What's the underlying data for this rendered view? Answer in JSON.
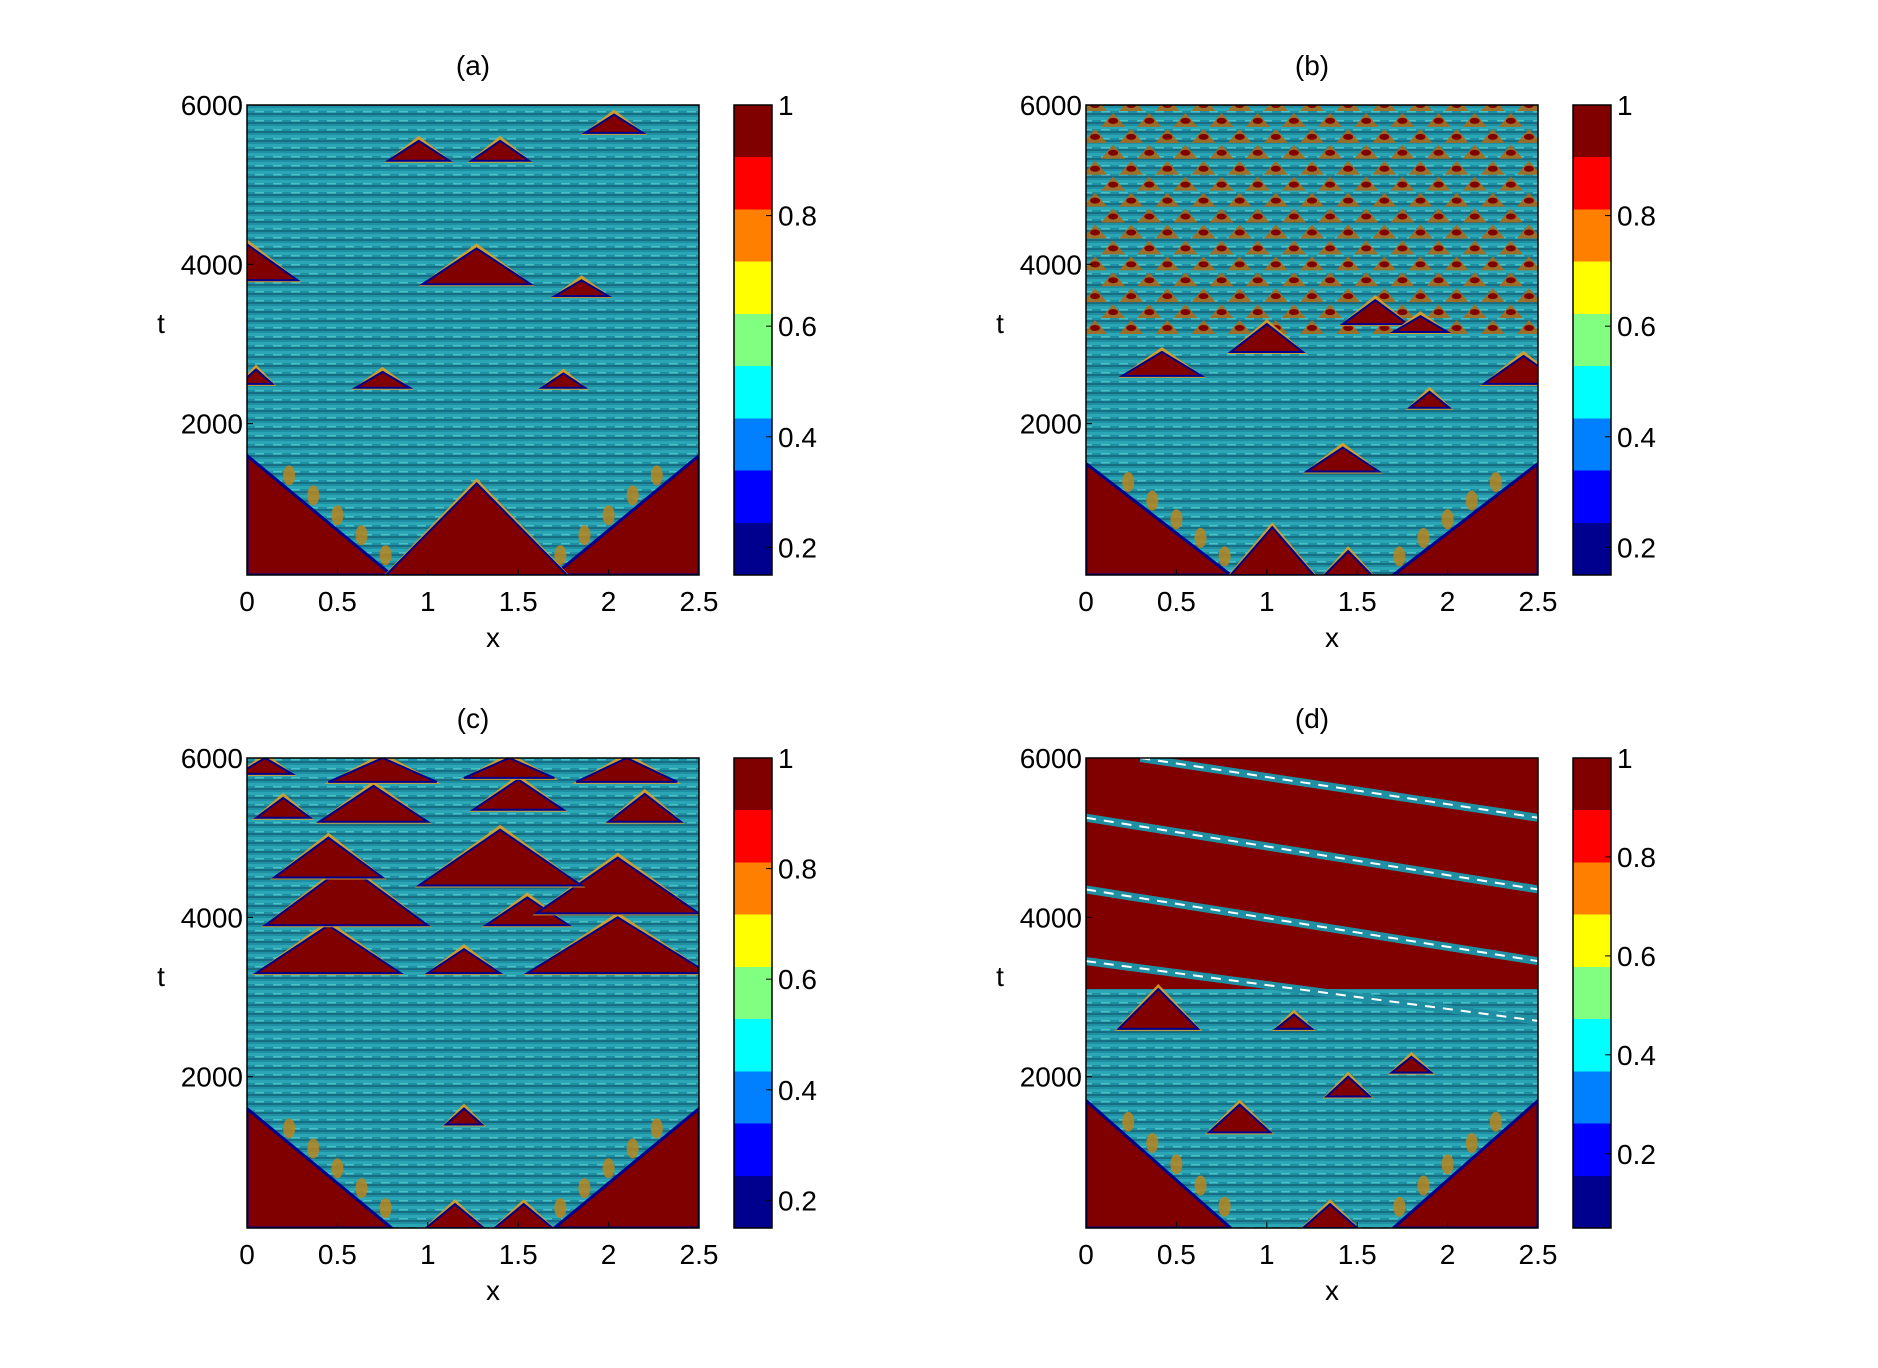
{
  "figure": {
    "background": "#ffffff",
    "colormap": [
      "#00008f",
      "#0000ff",
      "#0080ff",
      "#00ffff",
      "#80ff80",
      "#ffff00",
      "#ff8000",
      "#ff0000",
      "#800000"
    ]
  },
  "chart_data": [
    {
      "type": "heatmap",
      "title": "(a)",
      "xlabel": "x",
      "ylabel": "t",
      "xlim": [
        0,
        2.5
      ],
      "ylim": [
        100,
        6000
      ],
      "xticks": [
        "0",
        "0.5",
        "1",
        "1.5",
        "2",
        "2.5"
      ],
      "xtick_values": [
        0,
        0.5,
        1,
        1.5,
        2,
        2.5
      ],
      "yticks": [
        "2000",
        "4000",
        "6000"
      ],
      "ytick_values": [
        2000,
        4000,
        6000
      ],
      "colorbar": {
        "range": [
          0.15,
          1.0
        ],
        "ticks": [
          "0.2",
          "0.4",
          "0.6",
          "0.8",
          "1"
        ],
        "tick_values": [
          0.2,
          0.4,
          0.6,
          0.8,
          1.0
        ]
      },
      "pattern": {
        "base_value": 0.4,
        "initial_front_end_t": 1600,
        "triangles": [
          {
            "x": 1.27,
            "t": 100,
            "half_width": 0.5,
            "height": 1150
          },
          {
            "x": 0.0,
            "t": 3800,
            "half_width": 0.28,
            "height": 450
          },
          {
            "x": 1.27,
            "t": 3750,
            "half_width": 0.3,
            "height": 450
          },
          {
            "x": 1.85,
            "t": 3600,
            "half_width": 0.15,
            "height": 200
          },
          {
            "x": 0.05,
            "t": 2500,
            "half_width": 0.09,
            "height": 180
          },
          {
            "x": 0.75,
            "t": 2450,
            "half_width": 0.15,
            "height": 200
          },
          {
            "x": 1.75,
            "t": 2450,
            "half_width": 0.12,
            "height": 180
          },
          {
            "x": 0.95,
            "t": 5300,
            "half_width": 0.17,
            "height": 250
          },
          {
            "x": 1.4,
            "t": 5300,
            "half_width": 0.16,
            "height": 250
          },
          {
            "x": 2.03,
            "t": 5650,
            "half_width": 0.16,
            "height": 230
          }
        ],
        "bands": [],
        "diagonals": []
      }
    },
    {
      "type": "heatmap",
      "title": "(b)",
      "xlabel": "x",
      "ylabel": "t",
      "xlim": [
        0,
        2.5
      ],
      "ylim": [
        100,
        6000
      ],
      "xticks": [
        "0",
        "0.5",
        "1",
        "1.5",
        "2",
        "2.5"
      ],
      "xtick_values": [
        0,
        0.5,
        1,
        1.5,
        2,
        2.5
      ],
      "yticks": [
        "2000",
        "4000",
        "6000"
      ],
      "ytick_values": [
        2000,
        4000,
        6000
      ],
      "colorbar": {
        "range": [
          0.15,
          1.0
        ],
        "ticks": [
          "0.2",
          "0.4",
          "0.6",
          "0.8",
          "1"
        ],
        "tick_values": [
          0.2,
          0.4,
          0.6,
          0.8,
          1.0
        ]
      },
      "pattern": {
        "base_value": 0.4,
        "initial_front_end_t": 1500,
        "lattice_from_t": 3200,
        "triangles": [
          {
            "x": 1.03,
            "t": 100,
            "half_width": 0.23,
            "height": 600
          },
          {
            "x": 1.45,
            "t": 100,
            "half_width": 0.13,
            "height": 300
          },
          {
            "x": 1.42,
            "t": 1400,
            "half_width": 0.2,
            "height": 300
          },
          {
            "x": 0.42,
            "t": 2600,
            "half_width": 0.22,
            "height": 300
          },
          {
            "x": 1.0,
            "t": 2900,
            "half_width": 0.2,
            "height": 350
          },
          {
            "x": 1.6,
            "t": 3250,
            "half_width": 0.18,
            "height": 300
          },
          {
            "x": 1.85,
            "t": 3150,
            "half_width": 0.15,
            "height": 200
          },
          {
            "x": 2.42,
            "t": 2500,
            "half_width": 0.22,
            "height": 350
          },
          {
            "x": 1.9,
            "t": 2200,
            "half_width": 0.11,
            "height": 200
          }
        ],
        "bands": [],
        "diagonals": []
      }
    },
    {
      "type": "heatmap",
      "title": "(c)",
      "xlabel": "x",
      "ylabel": "t",
      "xlim": [
        0,
        2.5
      ],
      "ylim": [
        100,
        6000
      ],
      "xticks": [
        "0",
        "0.5",
        "1",
        "1.5",
        "2",
        "2.5"
      ],
      "xtick_values": [
        0,
        0.5,
        1,
        1.5,
        2,
        2.5
      ],
      "yticks": [
        "2000",
        "4000",
        "6000"
      ],
      "ytick_values": [
        2000,
        4000,
        6000
      ],
      "colorbar": {
        "range": [
          0.15,
          1.0
        ],
        "ticks": [
          "0.2",
          "0.4",
          "0.6",
          "0.8",
          "1"
        ],
        "tick_values": [
          0.2,
          0.4,
          0.6,
          0.8,
          1.0
        ]
      },
      "pattern": {
        "base_value": 0.4,
        "initial_front_end_t": 1600,
        "triangles": [
          {
            "x": 1.15,
            "t": 100,
            "half_width": 0.16,
            "height": 300
          },
          {
            "x": 1.53,
            "t": 100,
            "half_width": 0.16,
            "height": 300
          },
          {
            "x": 1.2,
            "t": 1400,
            "half_width": 0.1,
            "height": 200
          },
          {
            "x": 0.45,
            "t": 3300,
            "half_width": 0.4,
            "height": 600
          },
          {
            "x": 2.05,
            "t": 3300,
            "half_width": 0.5,
            "height": 700
          },
          {
            "x": 1.2,
            "t": 3300,
            "half_width": 0.2,
            "height": 300
          },
          {
            "x": 0.55,
            "t": 3900,
            "half_width": 0.45,
            "height": 750
          },
          {
            "x": 1.55,
            "t": 3900,
            "half_width": 0.23,
            "height": 350
          },
          {
            "x": 2.05,
            "t": 4050,
            "half_width": 0.45,
            "height": 700
          },
          {
            "x": 0.45,
            "t": 4500,
            "half_width": 0.3,
            "height": 500
          },
          {
            "x": 1.4,
            "t": 4400,
            "half_width": 0.45,
            "height": 700
          },
          {
            "x": 0.7,
            "t": 5200,
            "half_width": 0.3,
            "height": 450
          },
          {
            "x": 1.5,
            "t": 5350,
            "half_width": 0.25,
            "height": 380
          },
          {
            "x": 2.2,
            "t": 5200,
            "half_width": 0.2,
            "height": 350
          },
          {
            "x": 0.2,
            "t": 5250,
            "half_width": 0.15,
            "height": 250
          },
          {
            "x": 0.75,
            "t": 5700,
            "half_width": 0.3,
            "height": 300
          },
          {
            "x": 1.45,
            "t": 5750,
            "half_width": 0.25,
            "height": 250
          },
          {
            "x": 2.1,
            "t": 5700,
            "half_width": 0.28,
            "height": 300
          },
          {
            "x": 0.1,
            "t": 5800,
            "half_width": 0.15,
            "height": 200
          }
        ],
        "bands": [],
        "diagonals": []
      }
    },
    {
      "type": "heatmap",
      "title": "(d)",
      "xlabel": "x",
      "ylabel": "t",
      "xlim": [
        0,
        2.5
      ],
      "ylim": [
        100,
        6000
      ],
      "xticks": [
        "0",
        "0.5",
        "1",
        "1.5",
        "2",
        "2.5"
      ],
      "xtick_values": [
        0,
        0.5,
        1,
        1.5,
        2,
        2.5
      ],
      "yticks": [
        "2000",
        "4000",
        "6000"
      ],
      "ytick_values": [
        2000,
        4000,
        6000
      ],
      "colorbar": {
        "range": [
          0.05,
          1.0
        ],
        "ticks": [
          "0.2",
          "0.4",
          "0.6",
          "0.8",
          "1"
        ],
        "tick_values": [
          0.2,
          0.4,
          0.6,
          0.8,
          1.0
        ]
      },
      "pattern": {
        "base_value": 0.4,
        "initial_front_end_t": 1700,
        "upper_red_from_t": 3100,
        "triangles": [
          {
            "x": 1.35,
            "t": 100,
            "half_width": 0.15,
            "height": 300
          },
          {
            "x": 0.85,
            "t": 1300,
            "half_width": 0.17,
            "height": 350
          },
          {
            "x": 1.45,
            "t": 1750,
            "half_width": 0.12,
            "height": 250
          },
          {
            "x": 1.8,
            "t": 2050,
            "half_width": 0.11,
            "height": 200
          },
          {
            "x": 0.4,
            "t": 2600,
            "half_width": 0.22,
            "height": 500
          },
          {
            "x": 1.15,
            "t": 2600,
            "half_width": 0.1,
            "height": 180
          }
        ],
        "bands": [],
        "diagonals": [
          {
            "x0": 0.0,
            "t0": 3450,
            "x1": 2.5,
            "t1": 2700
          },
          {
            "x0": 0.0,
            "t0": 4350,
            "x1": 2.5,
            "t1": 3450
          },
          {
            "x0": 0.0,
            "t0": 5250,
            "x1": 2.5,
            "t1": 4350
          },
          {
            "x0": 0.3,
            "t0": 6000,
            "x1": 2.5,
            "t1": 5250
          }
        ]
      }
    }
  ]
}
